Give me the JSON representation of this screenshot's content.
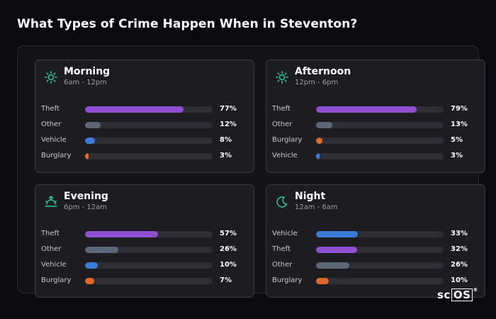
{
  "title": "What Types of Crime Happen When in Steventon?",
  "colors": {
    "Theft": "#8e4fd0",
    "Other": "#5d6677",
    "Vehicle": "#3a7bd5",
    "Burglary": "#e0692a",
    "icon": "#2fc9a0"
  },
  "logo": {
    "prefix": "sc",
    "boxed": "OS",
    "mark": "®"
  },
  "chart_data": [
    {
      "type": "bar",
      "title": "Morning",
      "subtitle": "6am - 12pm",
      "icon": "sun-icon",
      "categories": [
        "Theft",
        "Other",
        "Vehicle",
        "Burglary"
      ],
      "values": [
        77,
        12,
        8,
        3
      ],
      "labels": [
        "77%",
        "12%",
        "8%",
        "3%"
      ],
      "xlim": [
        0,
        100
      ]
    },
    {
      "type": "bar",
      "title": "Afternoon",
      "subtitle": "12pm - 6pm",
      "icon": "sun-icon",
      "categories": [
        "Theft",
        "Other",
        "Burglary",
        "Vehicle"
      ],
      "values": [
        79,
        13,
        5,
        3
      ],
      "labels": [
        "79%",
        "13%",
        "5%",
        "3%"
      ],
      "xlim": [
        0,
        100
      ]
    },
    {
      "type": "bar",
      "title": "Evening",
      "subtitle": "6pm - 12am",
      "icon": "sunset-icon",
      "categories": [
        "Theft",
        "Other",
        "Vehicle",
        "Burglary"
      ],
      "values": [
        57,
        26,
        10,
        7
      ],
      "labels": [
        "57%",
        "26%",
        "10%",
        "7%"
      ],
      "xlim": [
        0,
        100
      ]
    },
    {
      "type": "bar",
      "title": "Night",
      "subtitle": "12am - 6am",
      "icon": "moon-icon",
      "categories": [
        "Vehicle",
        "Theft",
        "Other",
        "Burglary"
      ],
      "values": [
        33,
        32,
        26,
        10
      ],
      "labels": [
        "33%",
        "32%",
        "26%",
        "10%"
      ],
      "xlim": [
        0,
        100
      ]
    }
  ]
}
